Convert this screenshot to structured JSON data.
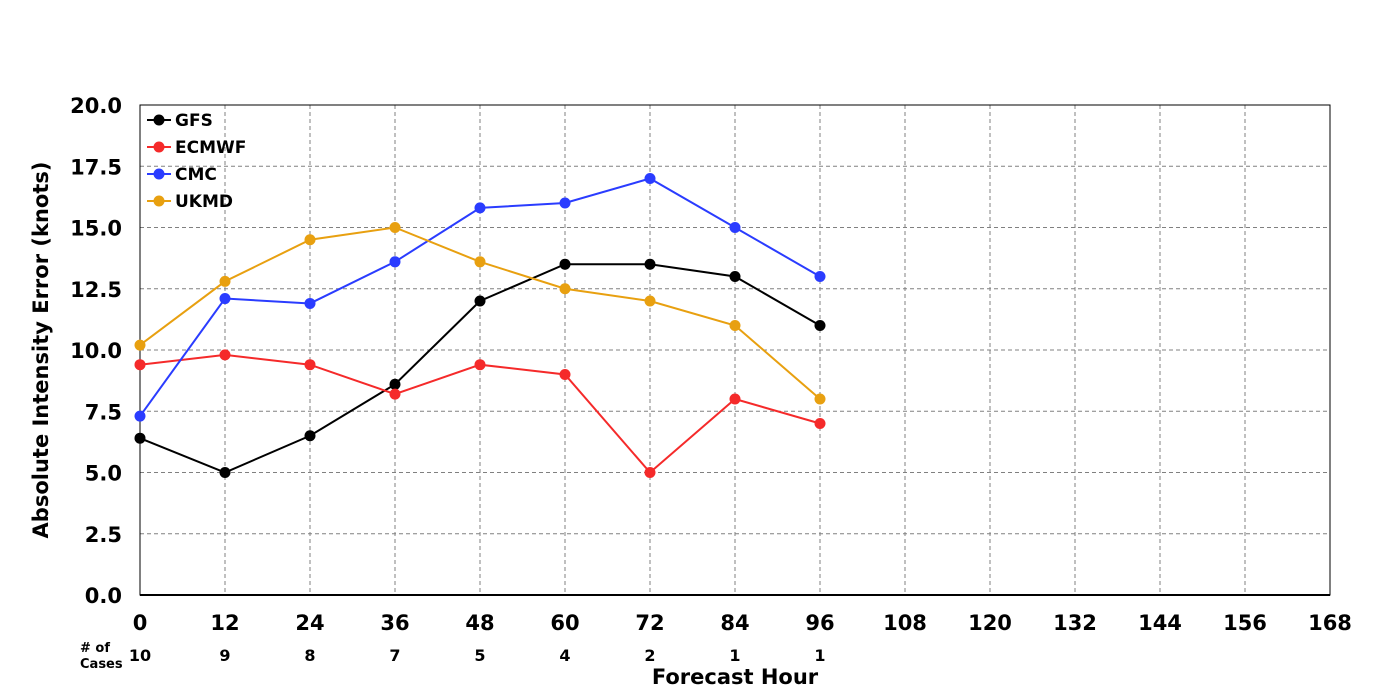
{
  "chart_data": {
    "type": "line",
    "xlabel": "Forecast Hour",
    "ylabel": "Absolute Intensity Error (knots)",
    "x_ticks": [
      0,
      12,
      24,
      36,
      48,
      60,
      72,
      84,
      96,
      108,
      120,
      132,
      144,
      156,
      168
    ],
    "y_ticks": [
      "0.0",
      "2.5",
      "5.0",
      "7.5",
      "10.0",
      "12.5",
      "15.0",
      "17.5",
      "20.0"
    ],
    "xlim": [
      0,
      168
    ],
    "ylim": [
      0,
      20
    ],
    "grid": true,
    "legend_position": "top-left",
    "cases_label_line1": "# of",
    "cases_label_line2": "Cases",
    "cases": [
      10,
      9,
      8,
      7,
      5,
      4,
      2,
      1,
      1
    ],
    "x": [
      0,
      12,
      24,
      36,
      48,
      60,
      72,
      84,
      96
    ],
    "series": [
      {
        "name": "GFS",
        "color": "#000000",
        "values": [
          6.4,
          5.0,
          6.5,
          8.6,
          12.0,
          13.5,
          13.5,
          13.0,
          11.0
        ]
      },
      {
        "name": "ECMWF",
        "color": "#f52a2a",
        "values": [
          9.4,
          9.8,
          9.4,
          8.2,
          9.4,
          9.0,
          5.0,
          8.0,
          7.0
        ]
      },
      {
        "name": "CMC",
        "color": "#2a3cff",
        "values": [
          7.3,
          12.1,
          11.9,
          13.6,
          15.8,
          16.0,
          17.0,
          15.0,
          13.0
        ]
      },
      {
        "name": "UKMD",
        "color": "#e8a010",
        "values": [
          10.2,
          12.8,
          14.5,
          15.0,
          13.6,
          12.5,
          12.0,
          11.0,
          8.0
        ]
      }
    ]
  }
}
